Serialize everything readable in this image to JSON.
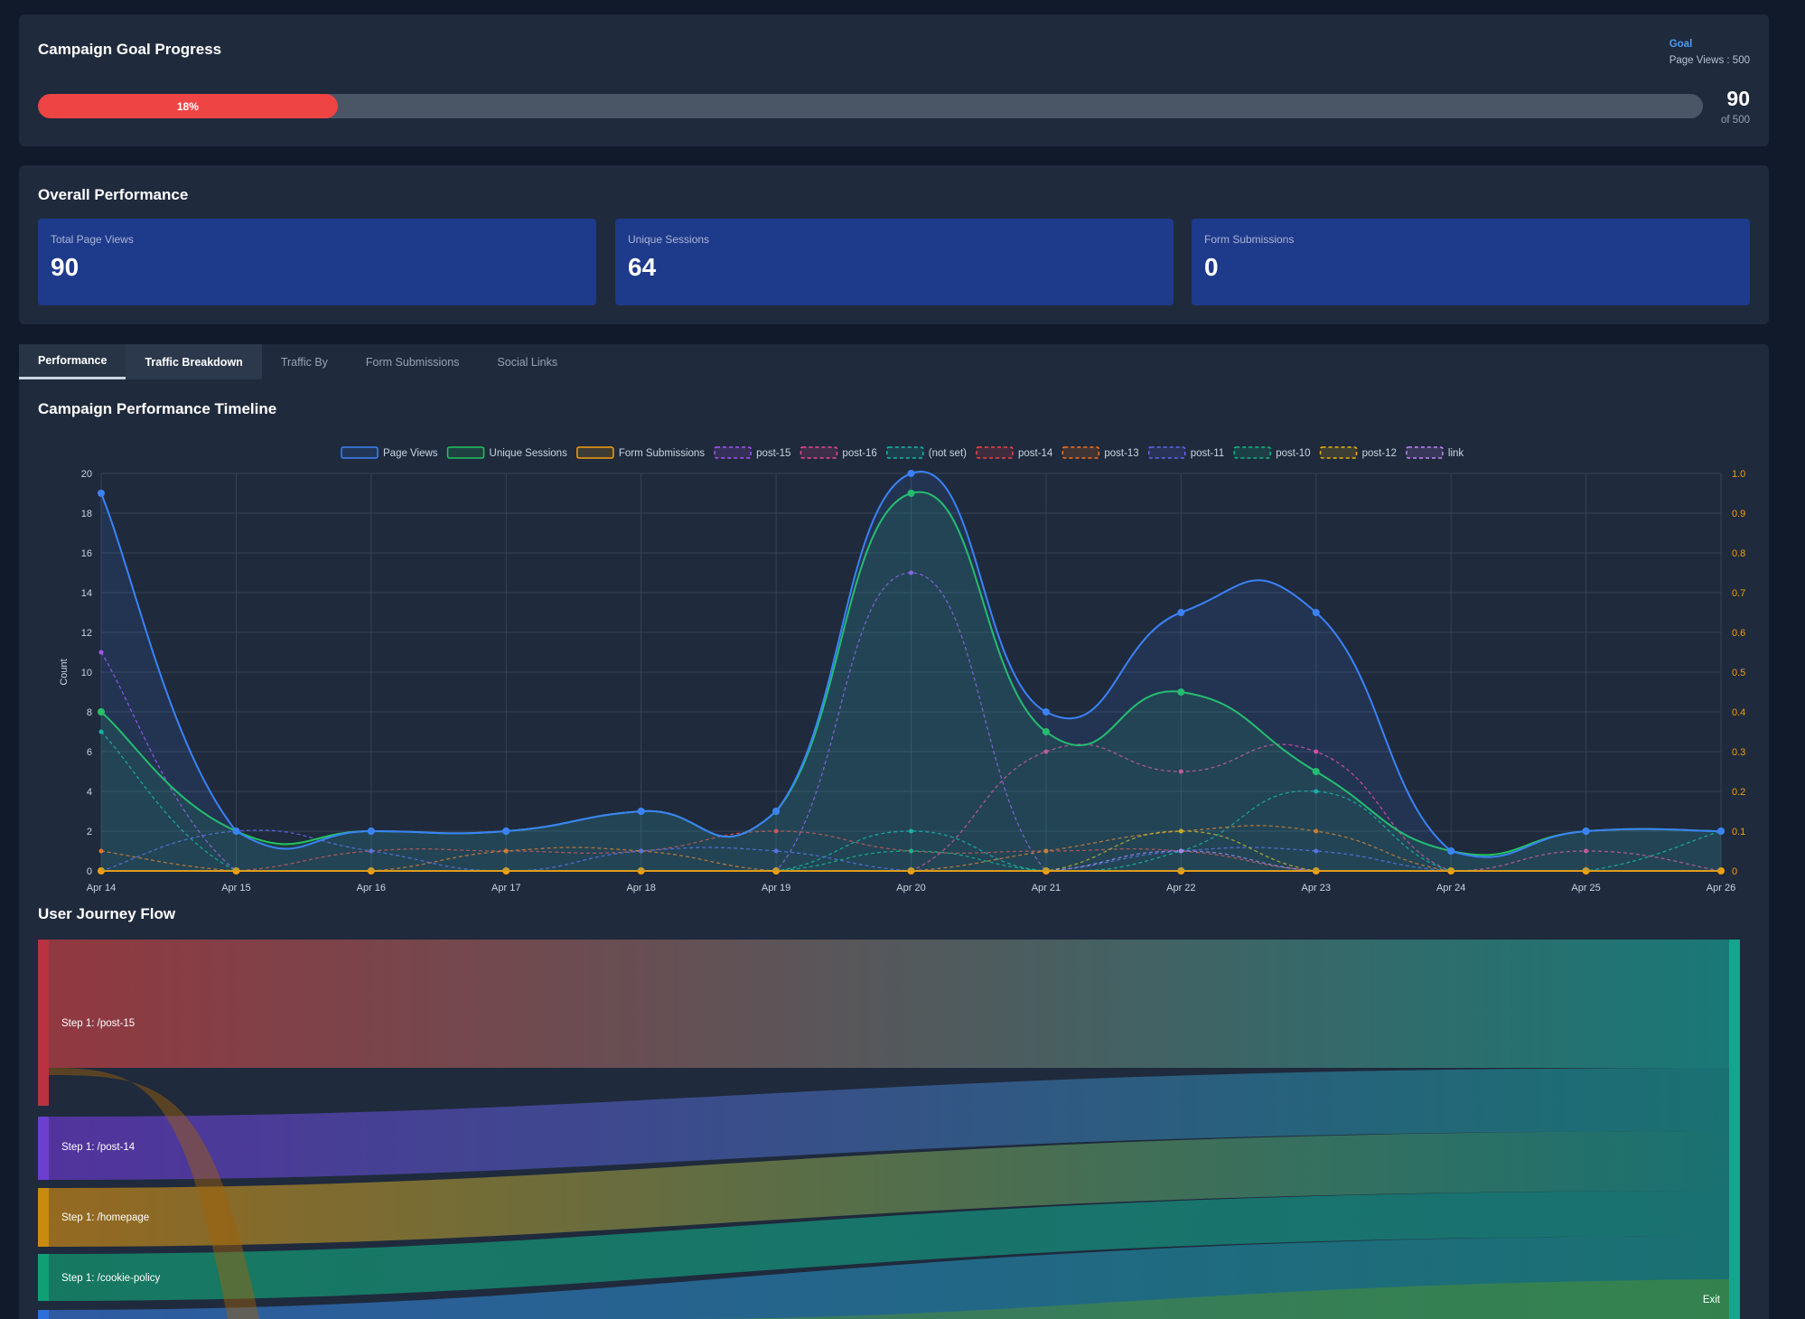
{
  "goal": {
    "title": "Campaign Goal Progress",
    "goal_label": "Goal",
    "goal_value": "Page Views : 500",
    "progress_fraction": 0.18,
    "progress_text": "18%",
    "current": "90",
    "of_text": "of 500"
  },
  "overall": {
    "title": "Overall Performance",
    "cards": [
      {
        "label": "Total Page Views",
        "value": "90"
      },
      {
        "label": "Unique Sessions",
        "value": "64"
      },
      {
        "label": "Form Submissions",
        "value": "0"
      }
    ]
  },
  "tabs": [
    "Performance",
    "Traffic Breakdown",
    "Traffic By",
    "Form Submissions",
    "Social Links"
  ],
  "timeline": {
    "title": "Campaign Performance Timeline"
  },
  "journey": {
    "title": "User Journey Flow",
    "nodes": [
      "Step 1: /post-15",
      "Step 1: /post-14",
      "Step 1: /homepage",
      "Step 1: /cookie-policy"
    ],
    "exit_label": "Exit"
  },
  "colors": {
    "page_views": "#3b82f6",
    "sessions": "#22c55e",
    "forms": "#f59e0b",
    "post15": "#a855f7",
    "post16": "#ec4899",
    "notset": "#14b8a6",
    "post14": "#ef4444",
    "post13": "#f97316",
    "post11": "#6366f1",
    "post10": "#10b981",
    "post12": "#eab308",
    "link": "#c084fc"
  },
  "chart_data": {
    "type": "line",
    "categories": [
      "Apr 14",
      "Apr 15",
      "Apr 16",
      "Apr 17",
      "Apr 18",
      "Apr 19",
      "Apr 20",
      "Apr 21",
      "Apr 22",
      "Apr 23",
      "Apr 24",
      "Apr 25",
      "Apr 26"
    ],
    "ylabel": "Count",
    "y2label": "Form Submissions",
    "ylim": [
      0,
      20
    ],
    "y2lim": [
      0,
      1.0
    ],
    "yticks": [
      0,
      2,
      4,
      6,
      8,
      10,
      12,
      14,
      16,
      18,
      20
    ],
    "y2ticks": [
      "0",
      "0.1",
      "0.2",
      "0.3",
      "0.4",
      "0.5",
      "0.6",
      "0.7",
      "0.8",
      "0.9",
      "1.0"
    ],
    "legend_position": "top",
    "grid": true,
    "series": [
      {
        "name": "Page Views",
        "key": "page_views",
        "values": [
          19,
          2,
          2,
          2,
          3,
          3,
          20,
          8,
          13,
          13,
          1,
          2,
          2
        ],
        "fill": true,
        "dashed": false
      },
      {
        "name": "Unique Sessions",
        "key": "sessions",
        "values": [
          8,
          2,
          2,
          2,
          3,
          3,
          19,
          7,
          9,
          5,
          1,
          2,
          2
        ],
        "fill": true,
        "dashed": false
      },
      {
        "name": "Form Submissions",
        "key": "forms",
        "values": [
          0,
          0,
          0,
          0,
          0,
          0,
          0,
          0,
          0,
          0,
          0,
          0,
          0
        ],
        "fill": false,
        "dashed": false
      },
      {
        "name": "post-15",
        "key": "post15",
        "values": [
          11,
          0,
          0,
          0,
          0,
          0,
          15,
          0,
          0,
          0,
          0,
          0,
          0
        ],
        "dashed": true
      },
      {
        "name": "post-16",
        "key": "post16",
        "values": [
          0,
          0,
          0,
          0,
          0,
          0,
          0,
          6,
          5,
          6,
          0,
          1,
          0
        ],
        "dashed": true
      },
      {
        "name": "(not set)",
        "key": "notset",
        "values": [
          7,
          0,
          0,
          0,
          0,
          0,
          2,
          0,
          1,
          4,
          0,
          0,
          2
        ],
        "dashed": true
      },
      {
        "name": "post-14",
        "key": "post14",
        "values": [
          0,
          0,
          1,
          1,
          1,
          2,
          1,
          1,
          1,
          0,
          0,
          0,
          0
        ],
        "dashed": true
      },
      {
        "name": "post-13",
        "key": "post13",
        "values": [
          1,
          0,
          0,
          1,
          1,
          0,
          0,
          1,
          2,
          2,
          0,
          0,
          0
        ],
        "dashed": true
      },
      {
        "name": "post-11",
        "key": "post11",
        "values": [
          0,
          2,
          1,
          0,
          1,
          1,
          0,
          0,
          1,
          1,
          0,
          0,
          0
        ],
        "dashed": true
      },
      {
        "name": "post-10",
        "key": "post10",
        "values": [
          0,
          0,
          0,
          0,
          0,
          0,
          1,
          0,
          0,
          0,
          0,
          0,
          0
        ],
        "dashed": true
      },
      {
        "name": "post-12",
        "key": "post12",
        "values": [
          0,
          0,
          0,
          0,
          0,
          0,
          0,
          0,
          2,
          0,
          0,
          0,
          0
        ],
        "dashed": true
      },
      {
        "name": "link",
        "key": "link",
        "values": [
          0,
          0,
          0,
          0,
          0,
          0,
          0,
          0,
          1,
          0,
          0,
          0,
          0
        ],
        "dashed": true
      }
    ]
  }
}
